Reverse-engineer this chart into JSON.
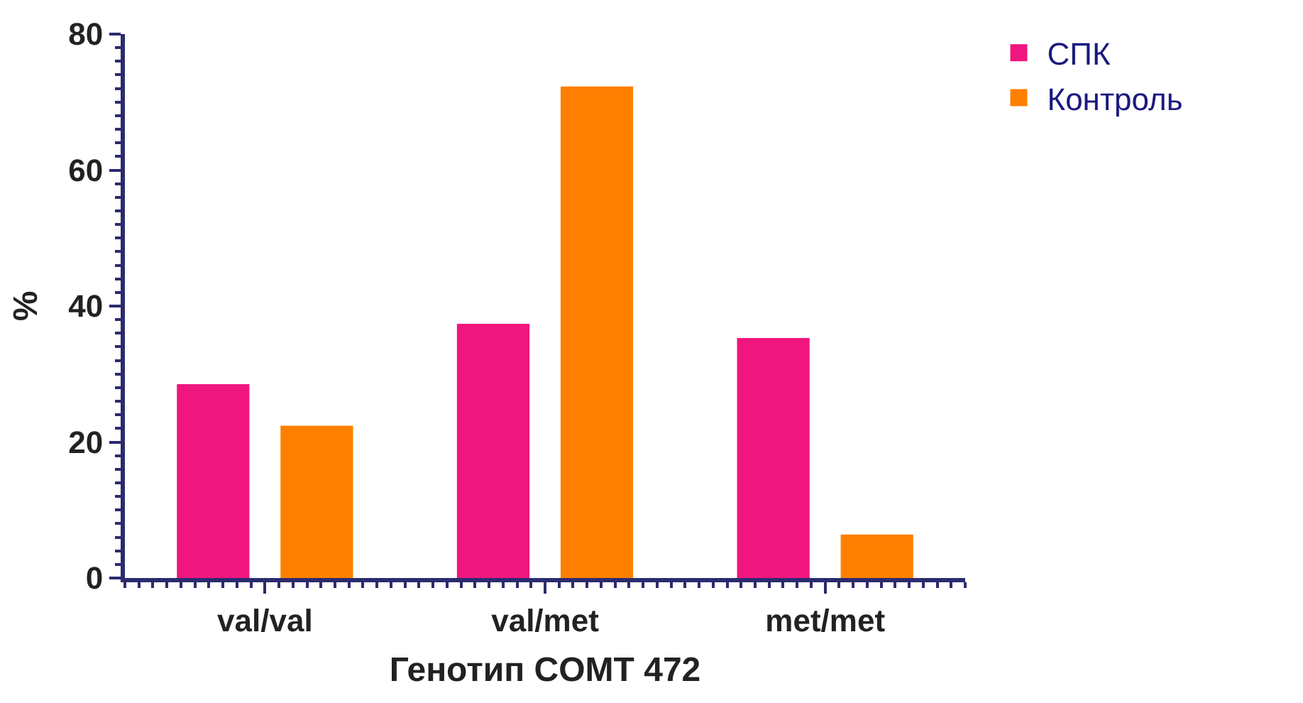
{
  "chart_data": {
    "type": "bar",
    "xlabel": "Генотип COMT 472",
    "ylabel": "%",
    "categories": [
      "val/val",
      "val/met",
      "met/met"
    ],
    "series": [
      {
        "name": "СПК",
        "color": "#f0167f",
        "values": [
          28.5,
          37.4,
          35.3
        ]
      },
      {
        "name": "Контроль",
        "color": "#ff8000",
        "values": [
          22.4,
          72.3,
          6.4
        ]
      }
    ],
    "ylim": [
      0,
      80
    ],
    "yticks": [
      0,
      20,
      40,
      60,
      80
    ],
    "legend": "top right"
  }
}
